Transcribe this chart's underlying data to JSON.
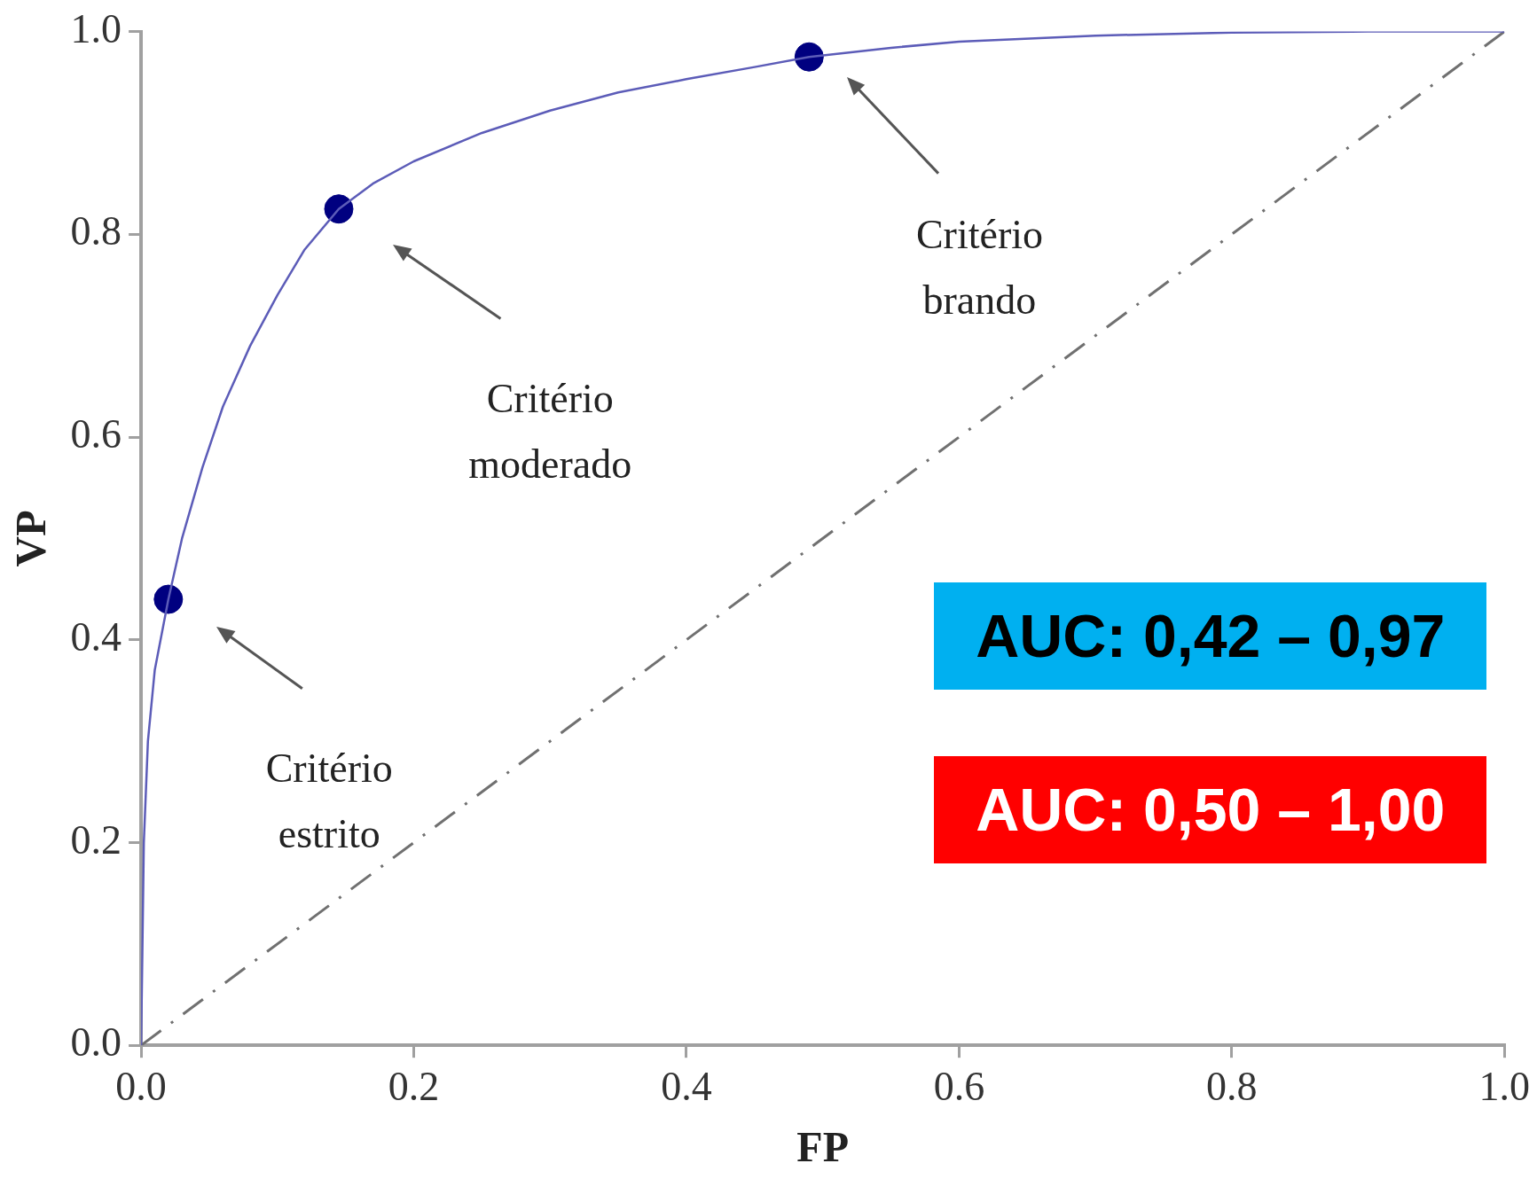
{
  "chart_data": {
    "type": "line",
    "xlabel": "FP",
    "ylabel": "VP",
    "xlim": [
      0,
      1
    ],
    "ylim": [
      0,
      1
    ],
    "xticks": [
      {
        "value": 0,
        "label": "0.0"
      },
      {
        "value": 0.2,
        "label": "0.2"
      },
      {
        "value": 0.4,
        "label": "0.4"
      },
      {
        "value": 0.6,
        "label": "0.6"
      },
      {
        "value": 0.8,
        "label": "0.8"
      },
      {
        "value": 1,
        "label": "1.0"
      }
    ],
    "yticks": [
      {
        "value": 0,
        "label": "0.0"
      },
      {
        "value": 0.2,
        "label": "0.2"
      },
      {
        "value": 0.4,
        "label": "0.4"
      },
      {
        "value": 0.6,
        "label": "0.6"
      },
      {
        "value": 0.8,
        "label": "0.8"
      },
      {
        "value": 1,
        "label": "1.0"
      }
    ],
    "series": [
      {
        "color": "#5c5cb8",
        "marker": "none",
        "line_style": "solid",
        "x": [
          0,
          0.002,
          0.005,
          0.01,
          0.02,
          0.03,
          0.045,
          0.06,
          0.08,
          0.1,
          0.12,
          0.145,
          0.17,
          0.2,
          0.25,
          0.3,
          0.35,
          0.4,
          0.45,
          0.49,
          0.55,
          0.6,
          0.7,
          0.8,
          0.9,
          1
        ],
        "values": [
          0,
          0.2,
          0.3,
          0.37,
          0.44,
          0.5,
          0.57,
          0.63,
          0.69,
          0.74,
          0.785,
          0.825,
          0.85,
          0.872,
          0.9,
          0.922,
          0.94,
          0.953,
          0.965,
          0.975,
          0.984,
          0.99,
          0.996,
          0.999,
          1,
          1
        ]
      },
      {
        "type": "scatter",
        "color": "#000080",
        "marker": "circle",
        "x": [
          0.02,
          0.145,
          0.49
        ],
        "values": [
          0.44,
          0.825,
          0.975
        ]
      },
      {
        "color": "#707070",
        "marker": "none",
        "line_style": "dashed",
        "x": [
          0,
          1
        ],
        "values": [
          0,
          1
        ]
      }
    ],
    "annotations": [
      "Critério estrito",
      "Critério moderado",
      "Critério brando",
      "AUC: 0,42 – 0,97",
      "AUC: 0,50 – 1,00"
    ]
  }
}
